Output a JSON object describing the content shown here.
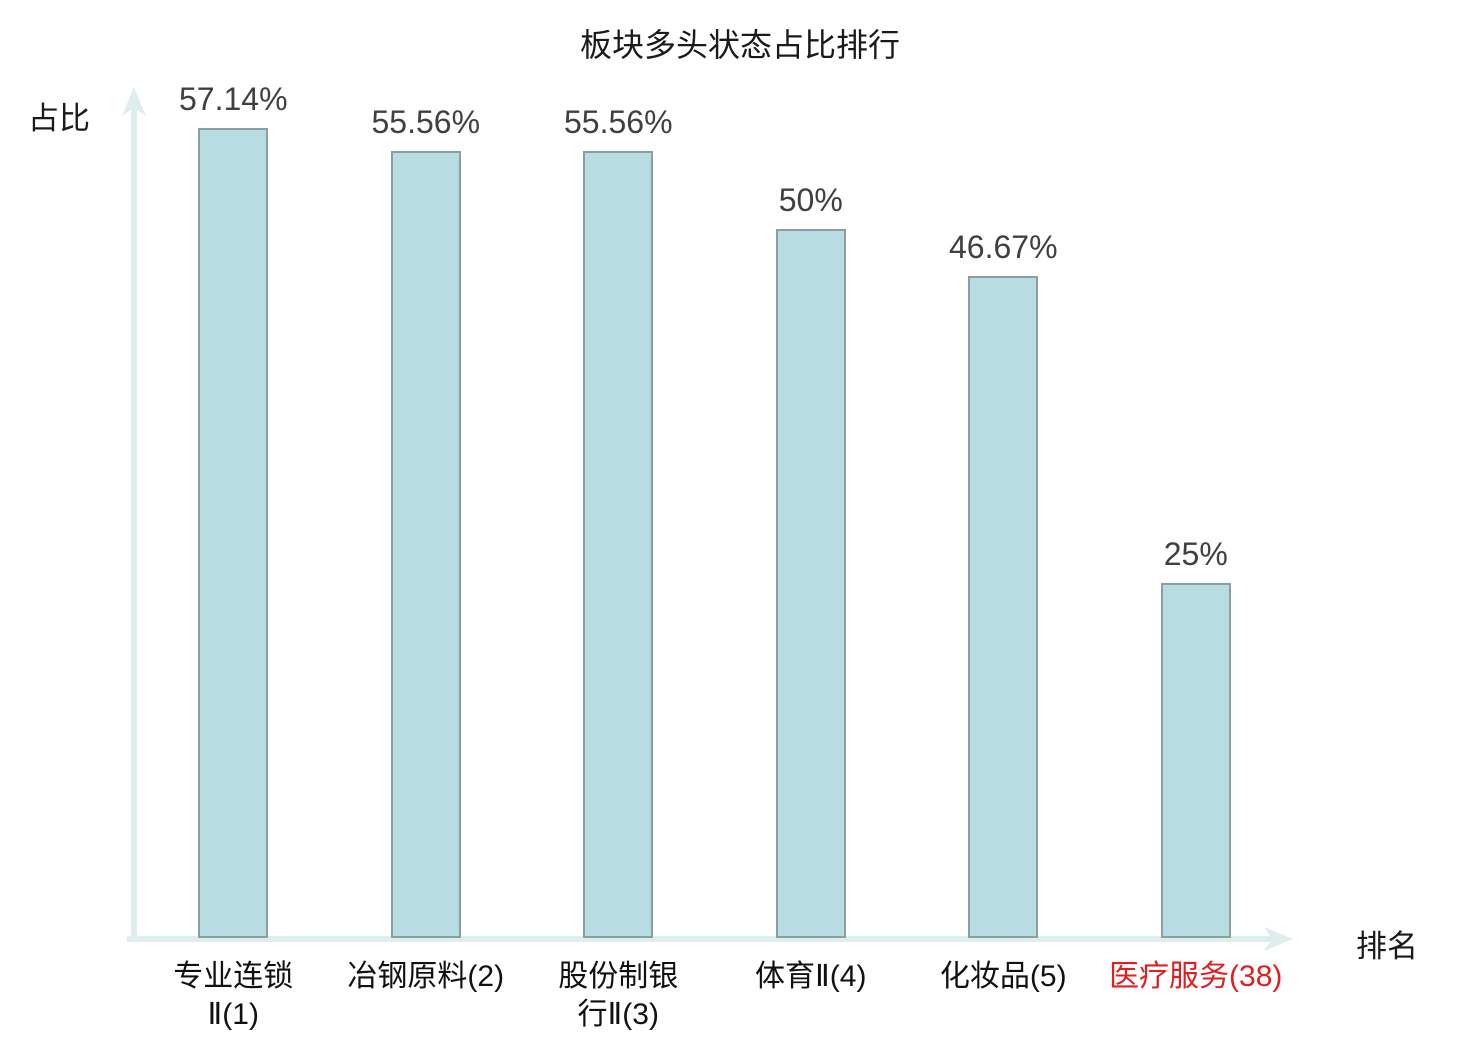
{
  "chart_data": {
    "type": "bar",
    "title": "板块多头状态占比排行",
    "xlabel": "排名",
    "ylabel": "占比",
    "categories": [
      "专业连锁Ⅱ(1)",
      "冶钢原料(2)",
      "股份制银行Ⅱ(3)",
      "体育Ⅱ(4)",
      "化妆品(5)",
      "医疗服务(38)"
    ],
    "category_display": [
      "专业连锁\nⅡ(1)",
      "冶钢原料(2)",
      "股份制银\n行Ⅱ(3)",
      "体育Ⅱ(4)",
      "化妆品(5)",
      "医疗服务(38)"
    ],
    "values": [
      57.14,
      55.56,
      55.56,
      50,
      46.67,
      25
    ],
    "value_labels": [
      "57.14%",
      "55.56%",
      "55.56%",
      "50%",
      "46.67%",
      "25%"
    ],
    "highlight_index": 5,
    "ylim": [
      0,
      60
    ],
    "grid": false,
    "legend": "none",
    "colors": {
      "bar_fill": "#b7dde2",
      "bar_border": "#8d9ea1",
      "axis": "#ddeeed",
      "value_text": "#404040",
      "category_text": "#111111",
      "highlight_text": "#e01f1f",
      "title_text": "#1a1a1a"
    }
  }
}
